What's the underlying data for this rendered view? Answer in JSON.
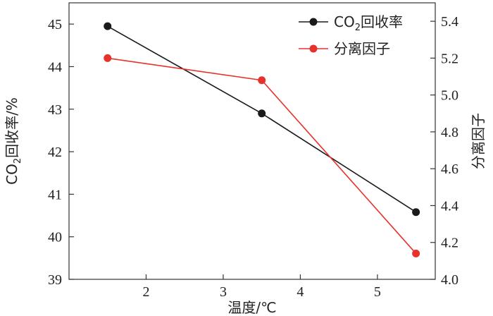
{
  "chart_data": {
    "type": "line",
    "x": [
      1.5,
      3.5,
      5.5
    ],
    "xlabel": "温度/℃",
    "xlim": [
      1.0,
      5.75
    ],
    "xticks": [
      "2",
      "3",
      "4",
      "5"
    ],
    "series": [
      {
        "name": "CO₂回收率",
        "legend_parts": [
          "CO",
          "2",
          "回收率"
        ],
        "axis": "left",
        "color": "#1a1a1a",
        "values": [
          44.95,
          42.9,
          40.58
        ]
      },
      {
        "name": "分离因子",
        "legend_parts": [
          "分离因子",
          "",
          ""
        ],
        "axis": "right",
        "color": "#e8312b",
        "values": [
          5.2,
          5.08,
          4.14
        ]
      }
    ],
    "ylabel_left": "CO₂回收率/%",
    "ylabel_left_parts": [
      "CO",
      "2",
      "回收率/%"
    ],
    "ylim_left": [
      39,
      45.5
    ],
    "yticks_left": [
      "39",
      "40",
      "41",
      "42",
      "43",
      "44",
      "45"
    ],
    "ylabel_right": "分离因子",
    "ylim_right": [
      4.0,
      5.5
    ],
    "yticks_right": [
      "4.0",
      "4.2",
      "4.4",
      "4.6",
      "4.8",
      "5.0",
      "5.2",
      "5.4"
    ],
    "legend_position": "top-right",
    "grid": false
  }
}
